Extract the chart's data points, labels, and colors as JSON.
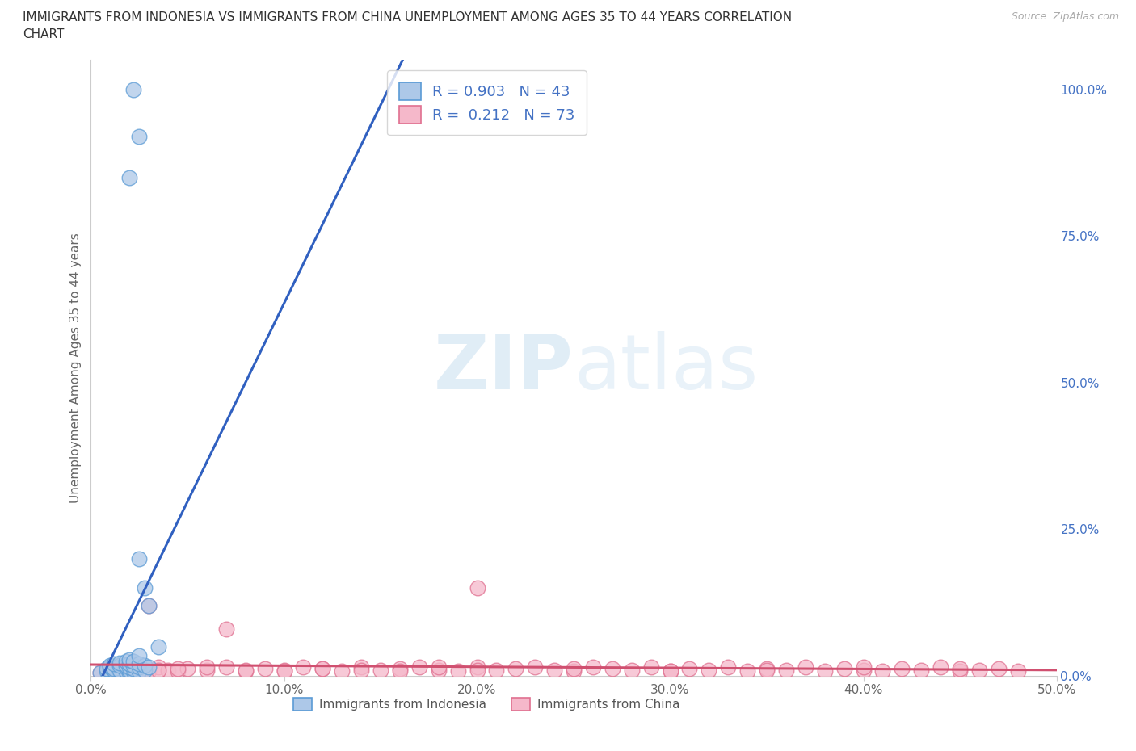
{
  "title_line1": "IMMIGRANTS FROM INDONESIA VS IMMIGRANTS FROM CHINA UNEMPLOYMENT AMONG AGES 35 TO 44 YEARS CORRELATION",
  "title_line2": "CHART",
  "source_text": "Source: ZipAtlas.com",
  "ylabel": "Unemployment Among Ages 35 to 44 years",
  "xlim": [
    0.0,
    0.5
  ],
  "ylim": [
    0.0,
    1.05
  ],
  "xticks": [
    0.0,
    0.1,
    0.2,
    0.3,
    0.4,
    0.5
  ],
  "xtick_labels": [
    "0.0%",
    "10.0%",
    "20.0%",
    "30.0%",
    "40.0%",
    "50.0%"
  ],
  "ytick_positions": [
    0.0,
    0.25,
    0.5,
    0.75,
    1.0
  ],
  "ytick_labels": [
    "0.0%",
    "25.0%",
    "50.0%",
    "75.0%",
    "100.0%"
  ],
  "indonesia_color": "#adc8e8",
  "china_color": "#f5b8ca",
  "indonesia_edge_color": "#5b9bd5",
  "china_edge_color": "#e07090",
  "indonesia_line_color": "#3060c0",
  "china_line_color": "#d05070",
  "indonesia_R": 0.903,
  "indonesia_N": 43,
  "china_R": 0.212,
  "china_N": 73,
  "watermark_zip": "ZIP",
  "watermark_atlas": "atlas",
  "indonesia_scatter_x": [
    0.005,
    0.008,
    0.01,
    0.012,
    0.015,
    0.008,
    0.01,
    0.012,
    0.015,
    0.018,
    0.01,
    0.012,
    0.015,
    0.018,
    0.02,
    0.012,
    0.015,
    0.018,
    0.02,
    0.022,
    0.015,
    0.018,
    0.02,
    0.022,
    0.025,
    0.018,
    0.02,
    0.022,
    0.025,
    0.028,
    0.02,
    0.022,
    0.025,
    0.028,
    0.03,
    0.025,
    0.028,
    0.03,
    0.035,
    0.025,
    0.02,
    0.022,
    0.025
  ],
  "indonesia_scatter_y": [
    0.005,
    0.008,
    0.01,
    0.008,
    0.005,
    0.012,
    0.015,
    0.01,
    0.008,
    0.005,
    0.018,
    0.012,
    0.01,
    0.008,
    0.005,
    0.02,
    0.018,
    0.015,
    0.01,
    0.008,
    0.022,
    0.018,
    0.015,
    0.012,
    0.008,
    0.025,
    0.02,
    0.018,
    0.015,
    0.01,
    0.028,
    0.025,
    0.02,
    0.018,
    0.015,
    0.2,
    0.15,
    0.12,
    0.05,
    0.035,
    0.85,
    1.0,
    0.92
  ],
  "china_scatter_x": [
    0.005,
    0.01,
    0.015,
    0.02,
    0.025,
    0.03,
    0.035,
    0.04,
    0.045,
    0.05,
    0.06,
    0.07,
    0.08,
    0.09,
    0.1,
    0.11,
    0.12,
    0.13,
    0.14,
    0.15,
    0.16,
    0.17,
    0.18,
    0.19,
    0.2,
    0.21,
    0.22,
    0.23,
    0.24,
    0.25,
    0.26,
    0.27,
    0.28,
    0.29,
    0.3,
    0.31,
    0.32,
    0.33,
    0.34,
    0.35,
    0.36,
    0.37,
    0.38,
    0.39,
    0.4,
    0.41,
    0.42,
    0.43,
    0.44,
    0.45,
    0.46,
    0.47,
    0.48,
    0.015,
    0.025,
    0.035,
    0.045,
    0.06,
    0.08,
    0.1,
    0.12,
    0.14,
    0.16,
    0.18,
    0.2,
    0.25,
    0.3,
    0.35,
    0.4,
    0.45,
    0.03,
    0.07,
    0.2
  ],
  "china_scatter_y": [
    0.005,
    0.01,
    0.008,
    0.012,
    0.01,
    0.008,
    0.015,
    0.01,
    0.008,
    0.012,
    0.01,
    0.015,
    0.008,
    0.012,
    0.01,
    0.015,
    0.012,
    0.008,
    0.015,
    0.01,
    0.012,
    0.015,
    0.01,
    0.008,
    0.015,
    0.01,
    0.012,
    0.015,
    0.01,
    0.008,
    0.015,
    0.012,
    0.01,
    0.015,
    0.008,
    0.012,
    0.01,
    0.015,
    0.008,
    0.012,
    0.01,
    0.015,
    0.008,
    0.012,
    0.01,
    0.008,
    0.012,
    0.01,
    0.015,
    0.008,
    0.01,
    0.012,
    0.008,
    0.015,
    0.008,
    0.01,
    0.012,
    0.015,
    0.01,
    0.008,
    0.012,
    0.01,
    0.008,
    0.015,
    0.01,
    0.012,
    0.008,
    0.01,
    0.015,
    0.012,
    0.12,
    0.08,
    0.15
  ]
}
